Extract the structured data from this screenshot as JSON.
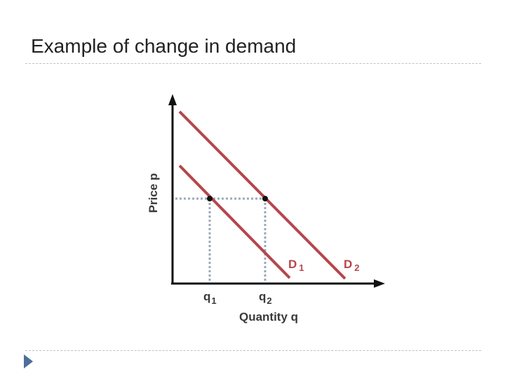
{
  "slide": {
    "title": "Example of change in demand"
  },
  "diagram": {
    "y_axis_label": "Price p",
    "x_axis_label": "Quantity q",
    "curves": [
      {
        "name": "D",
        "subscript": "1"
      },
      {
        "name": "D",
        "subscript": "2"
      }
    ],
    "quantities": [
      {
        "name": "q",
        "subscript": "1"
      },
      {
        "name": "q",
        "subscript": "2"
      }
    ],
    "colors": {
      "demand_curve": "#b5464b",
      "guide_line": "#9aa9b8",
      "axis": "#111111",
      "point": "#111111"
    }
  }
}
